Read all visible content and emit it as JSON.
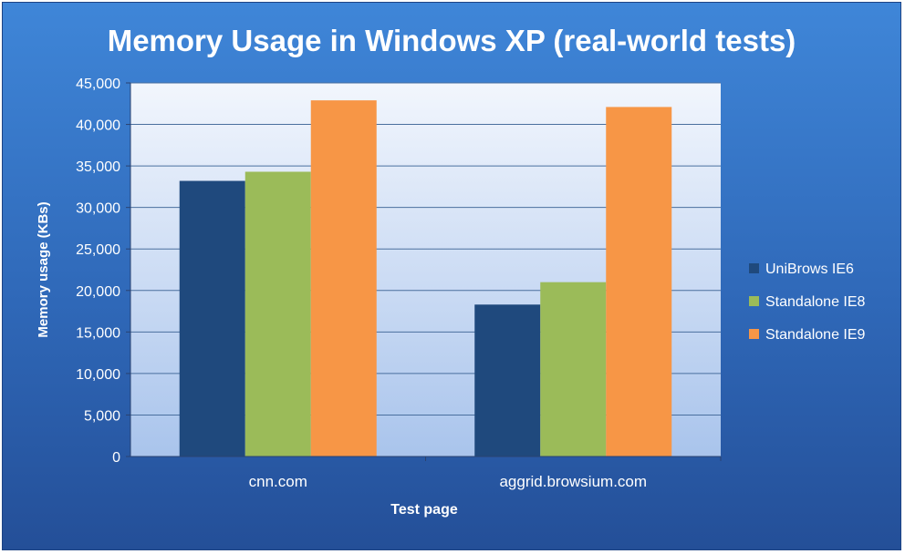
{
  "chart_data": {
    "type": "bar",
    "title": "Memory Usage in Windows XP (real-world tests)",
    "xlabel": "Test page",
    "ylabel": "Memory usage (KBs)",
    "categories": [
      "cnn.com",
      "aggrid.browsium.com"
    ],
    "series": [
      {
        "name": "UniBrows IE6",
        "values": [
          33200,
          18300
        ],
        "color": "#1f497d"
      },
      {
        "name": "Standalone IE8",
        "values": [
          34300,
          21000
        ],
        "color": "#9bbb59"
      },
      {
        "name": "Standalone IE9",
        "values": [
          42900,
          42100
        ],
        "color": "#f79646"
      }
    ],
    "ylim": [
      0,
      45000
    ],
    "yticks": [
      0,
      5000,
      10000,
      15000,
      20000,
      25000,
      30000,
      35000,
      40000,
      45000
    ],
    "ytick_labels": [
      "0",
      "5,000",
      "10,000",
      "15,000",
      "20,000",
      "25,000",
      "30,000",
      "35,000",
      "40,000",
      "45,000"
    ],
    "grid": true,
    "legend_position": "right",
    "colors": {
      "background_top": "#3f86d8",
      "background_bottom": "#244f98",
      "plot_top": "#f2f6fd",
      "plot_bottom": "#a9c4ec",
      "text": "#ffffff"
    }
  }
}
